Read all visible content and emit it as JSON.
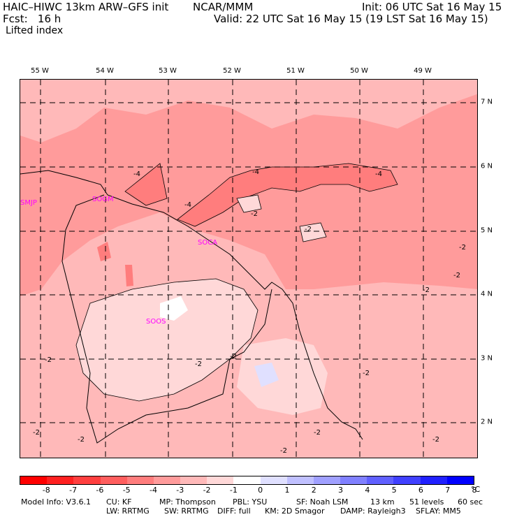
{
  "header": {
    "model": "HAIC–HIWC 13km ARW–GFS init",
    "org": "NCAR/MMM",
    "fcst": "Fcst:   16 h",
    "field": "Lifted index",
    "init": "Init: 06 UTC Sat 16 May 15",
    "valid": "Valid: 22 UTC Sat 16 May 15 (19 LST Sat 16 May 15)"
  },
  "longitudes": [
    {
      "label": "55 W"
    },
    {
      "label": "54 W"
    },
    {
      "label": "53 W"
    },
    {
      "label": "52 W"
    },
    {
      "label": "51 W"
    },
    {
      "label": "50 W"
    },
    {
      "label": "49 W"
    }
  ],
  "latitudes": [
    {
      "label": "7 N"
    },
    {
      "label": "6 N"
    },
    {
      "label": "5 N"
    },
    {
      "label": "4 N"
    },
    {
      "label": "3 N"
    },
    {
      "label": "2 N"
    }
  ],
  "stations": [
    {
      "code": "SMJP"
    },
    {
      "code": "SOGM"
    },
    {
      "code": "SOCA"
    },
    {
      "code": "SOOS"
    }
  ],
  "contour_labels": [
    "-4",
    "-4",
    "-4",
    "-4",
    "-2",
    "-2",
    "-2",
    "-2",
    "-2",
    "-2",
    "-2",
    "-2",
    "-2",
    "-2",
    "-2",
    "-2",
    "-2",
    "-2"
  ],
  "colorbar": {
    "colors": [
      "#ff0000",
      "#ff2020",
      "#ff3f3f",
      "#ff5e5e",
      "#ff7d7d",
      "#ff9b9b",
      "#ffb9b9",
      "#ffd8d8",
      "#ffffff",
      "#e0e0ff",
      "#c0c0ff",
      "#a0a0ff",
      "#8080ff",
      "#6060ff",
      "#4040ff",
      "#2020ff",
      "#0000ff"
    ],
    "ticks": [
      "-8",
      "-7",
      "-6",
      "-5",
      "-4",
      "-3",
      "-2",
      "-1",
      "0",
      "1",
      "2",
      "3",
      "4",
      "5",
      "6",
      "7",
      "8"
    ],
    "unit": "°C"
  },
  "footer": {
    "line1": [
      "Model Info: V3.6.1",
      "CU: KF",
      "MP: Thompson",
      "PBL: YSU",
      "SF: Noah LSM",
      "13 km",
      "51 levels",
      "60 sec"
    ],
    "line2": [
      "LW: RRTMG",
      "SW: RRTMG",
      "DIFF: full",
      "KM: 2D Smagor",
      "DAMP: Rayleigh3",
      "SFLAY: MM5"
    ]
  }
}
